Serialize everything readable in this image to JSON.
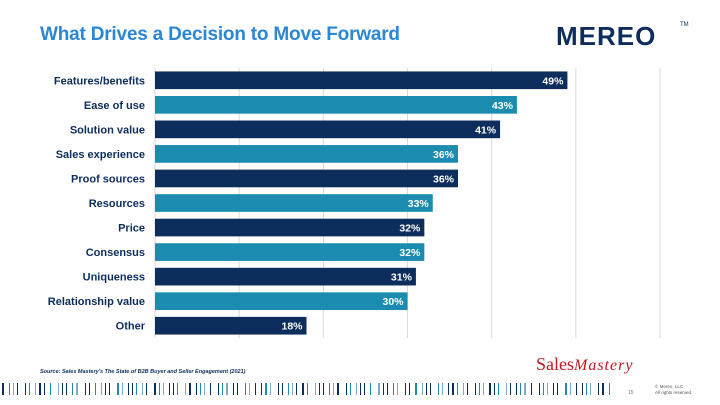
{
  "slide": {
    "title": "What Drives a Decision to Move Forward",
    "source": "Source: Sales Mastery's The State of B2B Buyer and Seller Engagement (2021)",
    "page_number": "15",
    "copyright_line1": "© Mereo, LLC",
    "copyright_line2": "All rights reserved."
  },
  "logos": {
    "mereo": "MEREO",
    "mereo_tm": "TM",
    "sales_mastery_a": "Sales",
    "sales_mastery_b": "Mastery"
  },
  "colors": {
    "title": "#2b86d6",
    "dark_bar": "#0d2d5c",
    "teal_bar": "#1b8bb0",
    "gridline": "#d9d9d9",
    "brand_red": "#c0171e"
  },
  "chart_data": {
    "type": "bar",
    "orientation": "horizontal",
    "categories": [
      "Features/benefits",
      "Ease of use",
      "Solution value",
      "Sales experience",
      "Proof sources",
      "Resources",
      "Price",
      "Consensus",
      "Uniqueness",
      "Relationship value",
      "Other"
    ],
    "values": [
      49,
      43,
      41,
      36,
      36,
      33,
      32,
      32,
      31,
      30,
      18
    ],
    "value_labels": [
      "49%",
      "43%",
      "41%",
      "36%",
      "36%",
      "33%",
      "32%",
      "32%",
      "31%",
      "30%",
      "18%"
    ],
    "bar_colors": [
      "#0d2d5c",
      "#1b8bb0",
      "#0d2d5c",
      "#1b8bb0",
      "#0d2d5c",
      "#1b8bb0",
      "#0d2d5c",
      "#1b8bb0",
      "#0d2d5c",
      "#1b8bb0",
      "#0d2d5c"
    ],
    "xlim": [
      0,
      60
    ],
    "grid_interval": 10,
    "grid": true,
    "legend": "none",
    "title": "",
    "xlabel": "",
    "ylabel": ""
  }
}
